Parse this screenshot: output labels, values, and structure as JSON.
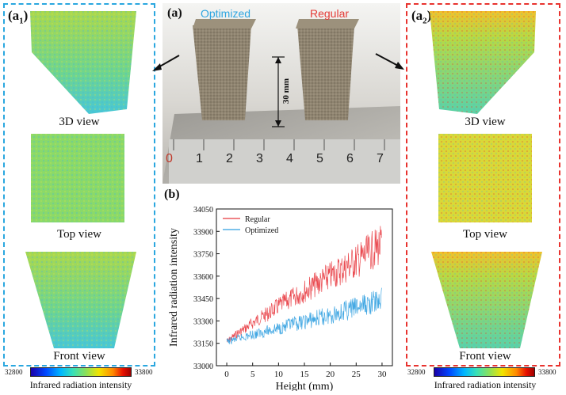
{
  "left_panel": {
    "label_main": "(a",
    "label_sub": "1",
    "label_close": ")",
    "views": [
      "3D view",
      "Top view",
      "Front view"
    ],
    "colorbar": {
      "min": "32800",
      "max": "33800",
      "title": "Infrared radiation intensity"
    },
    "border_color": "#2aa7df"
  },
  "right_panel": {
    "label_main": "(a",
    "label_sub": "2",
    "label_close": ")",
    "views": [
      "3D view",
      "Top view",
      "Front view"
    ],
    "colorbar": {
      "min": "32800",
      "max": "33800",
      "title": "Infrared radiation intensity"
    },
    "border_color": "#e8332f"
  },
  "photo": {
    "label": "(a)",
    "optimized_label": "Optimized",
    "regular_label": "Regular",
    "dimension_label": "30 mm",
    "ruler_digits": [
      "0",
      "1",
      "2",
      "3",
      "4",
      "5",
      "6",
      "7"
    ],
    "optimized_color": "#2ea6e0",
    "regular_color": "#e53b36"
  },
  "chart_panel_label": "(b)",
  "chart_data": {
    "type": "line",
    "xlabel": "Height (mm)",
    "ylabel": "Infrared radiation intensity",
    "xlim": [
      -2,
      32
    ],
    "ylim": [
      33000,
      34050
    ],
    "xticks": [
      0,
      5,
      10,
      15,
      20,
      25,
      30
    ],
    "yticks": [
      33000,
      33150,
      33300,
      33450,
      33600,
      33750,
      33900,
      34050
    ],
    "legend_position": "top-left",
    "series": [
      {
        "name": "Regular",
        "color": "#e8393f",
        "x": [
          0,
          2,
          4,
          6,
          8,
          10,
          12,
          14,
          16,
          18,
          20,
          22,
          24,
          26,
          28,
          30
        ],
        "y": [
          33160,
          33215,
          33260,
          33310,
          33350,
          33400,
          33440,
          33480,
          33520,
          33560,
          33600,
          33640,
          33680,
          33720,
          33770,
          33810
        ]
      },
      {
        "name": "Optimized",
        "color": "#2f9fe0",
        "x": [
          0,
          2,
          4,
          6,
          8,
          10,
          12,
          14,
          16,
          18,
          20,
          22,
          24,
          26,
          28,
          30
        ],
        "y": [
          33160,
          33180,
          33200,
          33215,
          33235,
          33250,
          33270,
          33285,
          33305,
          33320,
          33340,
          33360,
          33380,
          33400,
          33420,
          33440
        ]
      }
    ]
  }
}
